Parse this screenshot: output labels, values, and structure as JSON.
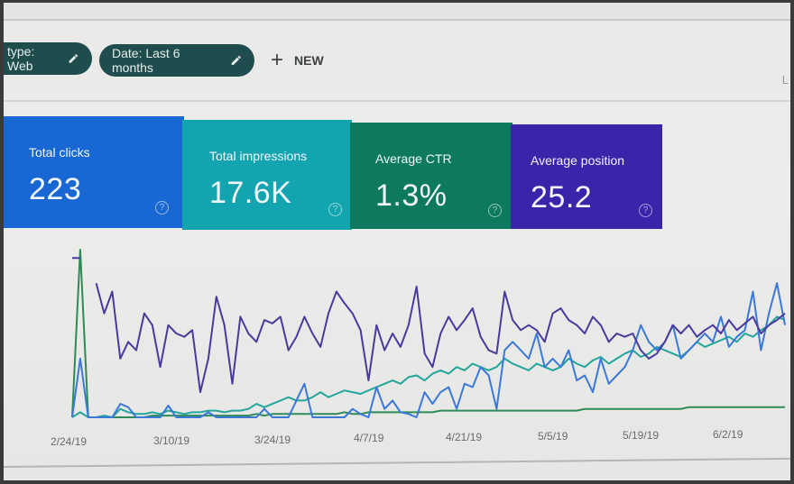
{
  "filters": {
    "chips": [
      {
        "label": "type: Web",
        "icon": "pencil-icon"
      },
      {
        "label": "Date: Last 6 months",
        "icon": "pencil-icon"
      }
    ],
    "new_button": {
      "icon": "plus-icon",
      "label": "NEW"
    }
  },
  "metrics": [
    {
      "label": "Total clicks",
      "value": "223",
      "color": "#1967d2",
      "help_icon": "question-circle-icon"
    },
    {
      "label": "Total impressions",
      "value": "17.6K",
      "color": "#12a4af",
      "help_icon": "question-circle-icon"
    },
    {
      "label": "Average CTR",
      "value": "1.3%",
      "color": "#0d7a5f",
      "help_icon": "question-circle-icon"
    },
    {
      "label": "Average position",
      "value": "25.2",
      "color": "#3c24aa",
      "help_icon": "question-circle-icon"
    }
  ],
  "chart_data": {
    "type": "line",
    "title": "",
    "xlabel": "",
    "ylabel": "",
    "x_tick_labels": [
      "2/24/19",
      "3/10/19",
      "3/24/19",
      "4/7/19",
      "4/21/19",
      "5/5/19",
      "5/19/19",
      "6/2/19"
    ],
    "grid": false,
    "legend": "none (series identified by metric card colors)",
    "series": [
      {
        "name": "Average position",
        "color": "#4a3a9c",
        "values": [
          95,
          95,
          null,
          80,
          62,
          75,
          35,
          45,
          40,
          62,
          55,
          30,
          55,
          50,
          48,
          52,
          15,
          35,
          72,
          55,
          20,
          60,
          50,
          45,
          58,
          56,
          60,
          40,
          48,
          60,
          50,
          42,
          62,
          75,
          68,
          62,
          52,
          22,
          55,
          40,
          50,
          42,
          55,
          78,
          38,
          30,
          50,
          60,
          52,
          58,
          65,
          48,
          40,
          38,
          75,
          58,
          52,
          55,
          52,
          45,
          62,
          65,
          58,
          55,
          50,
          60,
          55,
          45,
          50,
          48,
          50,
          40,
          35,
          38,
          45,
          55,
          50,
          55,
          48,
          52,
          55,
          50,
          58,
          52,
          56,
          60,
          50,
          55,
          58,
          62
        ]
      },
      {
        "name": "Total clicks",
        "color": "#3b78d8",
        "values": [
          0,
          35,
          0,
          0,
          0,
          0,
          8,
          6,
          0,
          0,
          0,
          0,
          7,
          0,
          0,
          0,
          0,
          3,
          0,
          0,
          0,
          0,
          0,
          0,
          5,
          0,
          0,
          0,
          10,
          20,
          0,
          0,
          0,
          0,
          0,
          5,
          2,
          0,
          18,
          5,
          10,
          3,
          2,
          0,
          15,
          8,
          15,
          18,
          5,
          20,
          18,
          30,
          25,
          5,
          40,
          45,
          40,
          35,
          50,
          30,
          35,
          30,
          40,
          22,
          25,
          15,
          35,
          20,
          25,
          30,
          40,
          55,
          45,
          40,
          45,
          55,
          35,
          40,
          45,
          50,
          45,
          60,
          42,
          48,
          52,
          75,
          40,
          62,
          80,
          55
        ]
      },
      {
        "name": "Total impressions",
        "color": "#24a69a",
        "values": [
          0,
          3,
          0,
          0,
          1,
          0,
          5,
          3,
          2,
          2,
          3,
          2,
          4,
          3,
          2,
          3,
          3,
          4,
          4,
          3,
          4,
          4,
          5,
          8,
          6,
          8,
          10,
          12,
          10,
          10,
          12,
          15,
          12,
          14,
          16,
          15,
          14,
          16,
          18,
          20,
          22,
          20,
          24,
          25,
          22,
          26,
          28,
          26,
          30,
          28,
          32,
          30,
          28,
          30,
          35,
          32,
          30,
          28,
          32,
          30,
          28,
          30,
          35,
          32,
          30,
          34,
          36,
          32,
          35,
          38,
          40,
          36,
          38,
          42,
          40,
          38,
          36,
          40,
          45,
          42,
          44,
          46,
          48,
          45,
          50,
          48,
          52,
          55,
          60,
          58
        ]
      },
      {
        "name": "Average CTR",
        "color": "#2e8b57",
        "values": [
          0,
          100,
          0,
          0,
          0,
          0,
          0,
          0,
          0,
          0,
          1,
          1,
          1,
          1,
          1,
          1,
          1,
          1,
          1,
          1,
          1,
          1,
          1,
          2,
          1,
          2,
          2,
          2,
          2,
          2,
          2,
          2,
          2,
          2,
          3,
          2,
          2,
          3,
          3,
          3,
          3,
          3,
          3,
          3,
          3,
          3,
          4,
          4,
          4,
          4,
          4,
          4,
          4,
          4,
          4,
          4,
          4,
          4,
          4,
          4,
          4,
          4,
          4,
          4,
          5,
          5,
          5,
          5,
          5,
          5,
          5,
          5,
          5,
          5,
          5,
          5,
          5,
          6,
          6,
          6,
          6,
          6,
          6,
          6,
          6,
          6,
          6,
          6,
          6,
          6
        ]
      }
    ]
  }
}
